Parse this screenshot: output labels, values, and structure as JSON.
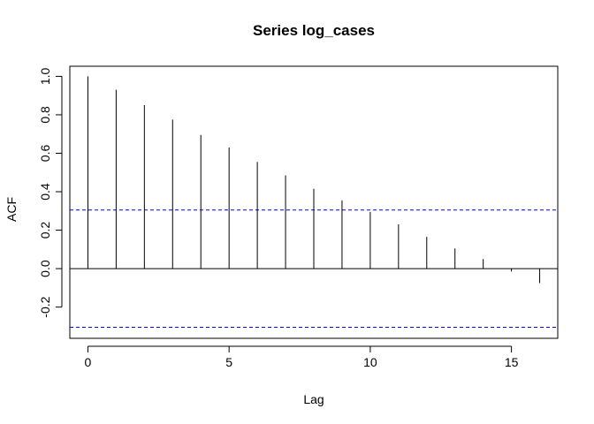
{
  "chart_data": {
    "type": "bar",
    "title": "Series  log_cases",
    "xlabel": "Lag",
    "ylabel": "ACF",
    "xlim": [
      -0.64,
      16.64
    ],
    "ylim": [
      -0.31,
      1.0
    ],
    "x_ticks": [
      0,
      5,
      10,
      15
    ],
    "y_ticks": [
      -0.2,
      0.0,
      0.2,
      0.4,
      0.6,
      0.8,
      1.0
    ],
    "x_tick_labels": [
      "0",
      "5",
      "10",
      "15"
    ],
    "y_tick_labels": [
      "-0.2",
      "0.0",
      "0.2",
      "0.4",
      "0.6",
      "0.8",
      "1.0"
    ],
    "lags": [
      0,
      1,
      2,
      3,
      4,
      5,
      6,
      7,
      8,
      9,
      10,
      11,
      12,
      13,
      14,
      15,
      16
    ],
    "acf": [
      1.0,
      0.93,
      0.85,
      0.775,
      0.695,
      0.63,
      0.555,
      0.485,
      0.415,
      0.355,
      0.295,
      0.23,
      0.165,
      0.105,
      0.05,
      -0.015,
      -0.075
    ],
    "confidence_bound": 0.305,
    "ci_color": "#0000ff",
    "grid": false
  }
}
